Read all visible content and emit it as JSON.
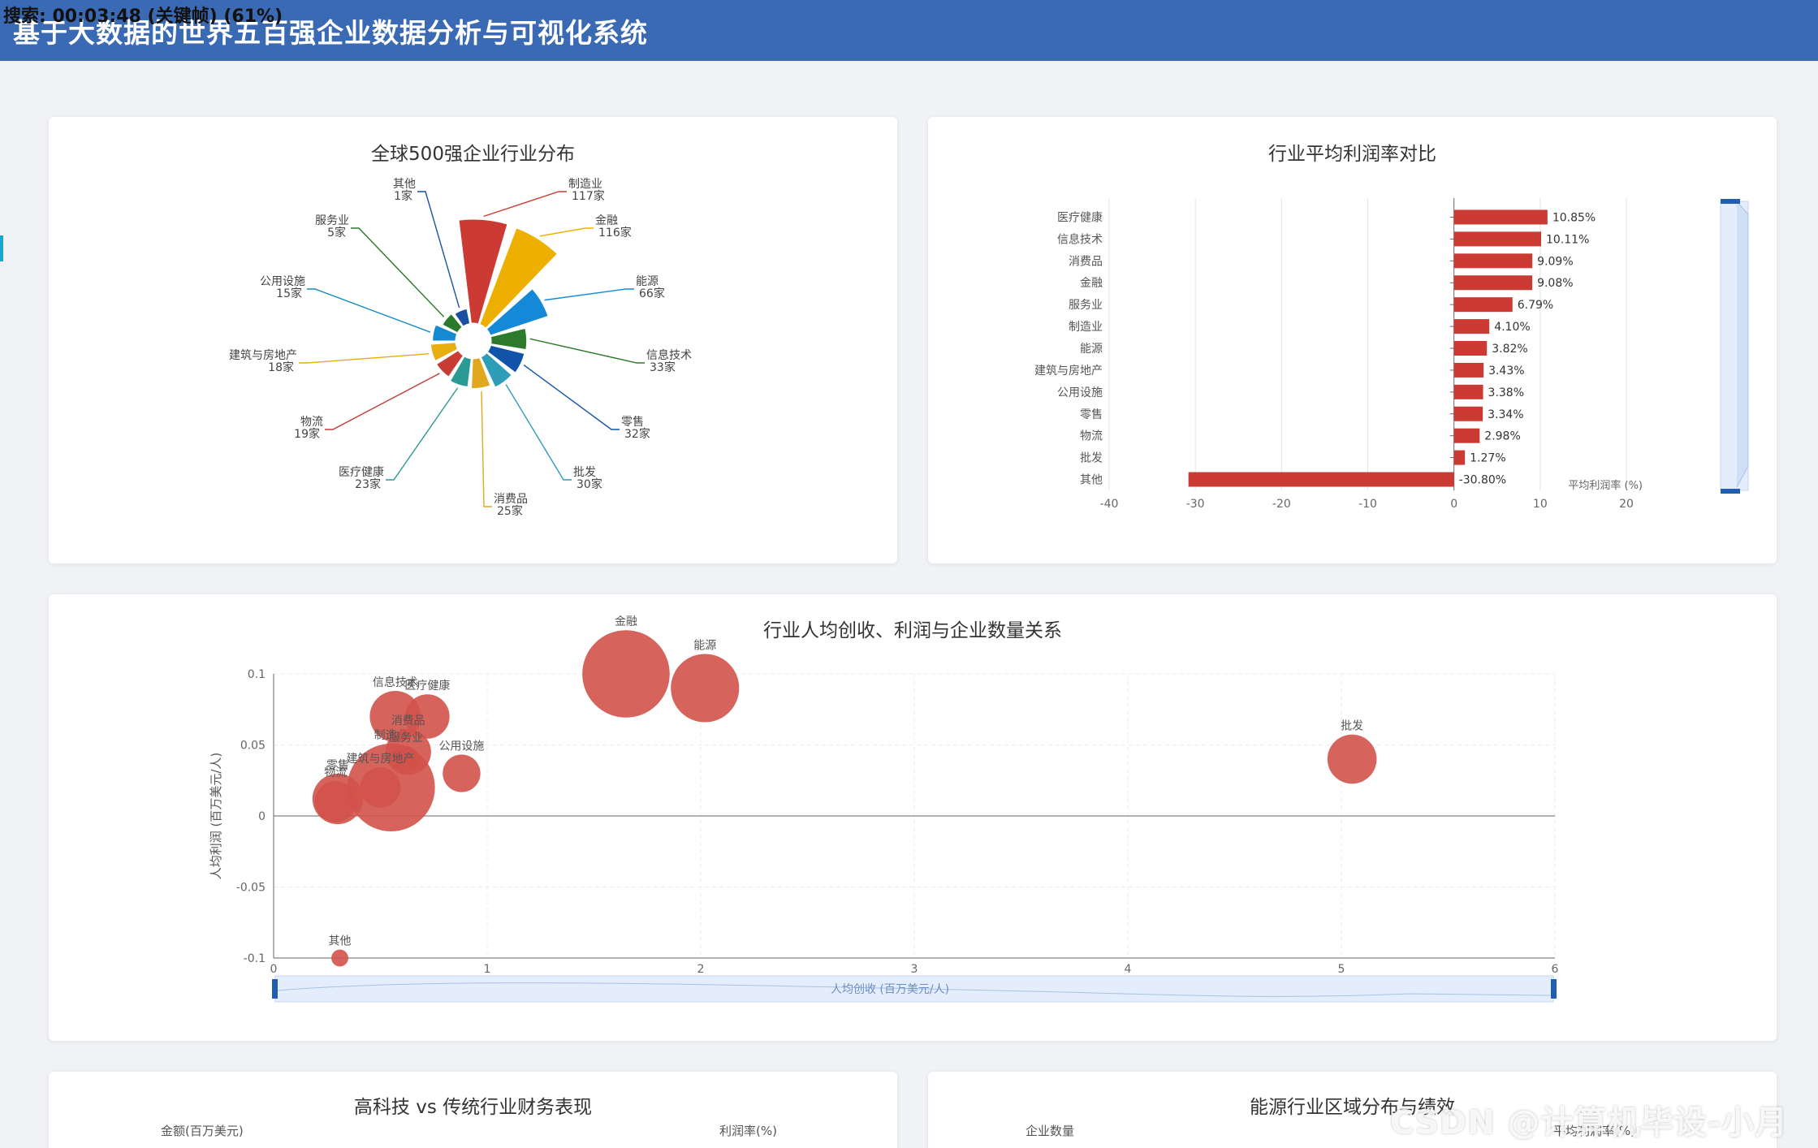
{
  "header": {
    "title": "基于大数据的世界五百强企业数据分析与可视化系统",
    "overlay_text": "搜索: 00:03:48 (关键帧) (61%)"
  },
  "watermark": "CSDN @计算机毕设-小月哥",
  "colors": {
    "header_bg": "#3a6ab4",
    "bar_red": "#cc3b33",
    "bubble_red": "#d2524a",
    "zoom_blue": "#1f5fae"
  },
  "cards": {
    "bottom_left_title": "高科技 vs 传统行业财务表现",
    "bottom_left_ylabel_left": "金额(百万美元)",
    "bottom_left_ylabel_right": "利润率(%)",
    "bottom_right_title": "能源行业区域分布与绩效",
    "bottom_right_ylabel_left": "企业数量",
    "bottom_right_ylabel_right": "平均利润率(%)"
  },
  "chart_data": [
    {
      "type": "pie",
      "variant": "rose",
      "title": "全球500强企业行业分布",
      "slices": [
        {
          "name": "制造业",
          "value": 117,
          "label": "117家",
          "color": "#cc3b33"
        },
        {
          "name": "金融",
          "value": 116,
          "label": "116家",
          "color": "#edb000"
        },
        {
          "name": "能源",
          "value": 66,
          "label": "66家",
          "color": "#1489d8"
        },
        {
          "name": "信息技术",
          "value": 33,
          "label": "33家",
          "color": "#2c7a2a"
        },
        {
          "name": "零售",
          "value": 32,
          "label": "32家",
          "color": "#1153a8"
        },
        {
          "name": "批发",
          "value": 30,
          "label": "30家",
          "color": "#2d9db8"
        },
        {
          "name": "消费品",
          "value": 25,
          "label": "25家",
          "color": "#e2a81d"
        },
        {
          "name": "医疗健康",
          "value": 23,
          "label": "23家",
          "color": "#2a9a94"
        },
        {
          "name": "物流",
          "value": 19,
          "label": "19家",
          "color": "#c73c35"
        },
        {
          "name": "建筑与房地产",
          "value": 18,
          "label": "18家",
          "color": "#e8ad0e"
        },
        {
          "name": "公用设施",
          "value": 15,
          "label": "15家",
          "color": "#168ad0"
        },
        {
          "name": "服务业",
          "value": 5,
          "label": "5家",
          "color": "#2a7a2a"
        },
        {
          "name": "其他",
          "value": 1,
          "label": "1家",
          "color": "#1c4fa0"
        }
      ]
    },
    {
      "type": "bar",
      "orientation": "horizontal",
      "title": "行业平均利润率对比",
      "categories": [
        "医疗健康",
        "信息技术",
        "消费品",
        "金融",
        "服务业",
        "制造业",
        "能源",
        "建筑与房地产",
        "公用设施",
        "零售",
        "物流",
        "批发",
        "其他"
      ],
      "series": [
        {
          "name": "平均利润率 (%)",
          "values": [
            10.85,
            10.11,
            9.09,
            9.08,
            6.79,
            4.1,
            3.82,
            3.43,
            3.38,
            3.34,
            2.98,
            1.27,
            -30.8
          ],
          "labels": [
            "10.85%",
            "10.11%",
            "9.09%",
            "9.08%",
            "6.79%",
            "4.10%",
            "3.82%",
            "3.43%",
            "3.38%",
            "3.34%",
            "2.98%",
            "1.27%",
            "-30.80%"
          ]
        }
      ],
      "xlim": [
        -40,
        20
      ],
      "xticks": [
        "-40",
        "-30",
        "-20",
        "-10",
        "0",
        "10",
        "20"
      ],
      "xlabel": "平均利润率 (%)",
      "grid": true
    },
    {
      "type": "scatter",
      "variant": "bubble",
      "title": "行业人均创收、利润与企业数量关系",
      "xlabel": "人均创收 (百万美元/人)",
      "ylabel": "人均利润 (百万美元/人)",
      "xlim": [
        0,
        6
      ],
      "ylim": [
        -0.1,
        0.1
      ],
      "xticks": [
        "0",
        "1",
        "2",
        "3",
        "4",
        "5",
        "6"
      ],
      "yticks": [
        "0.1",
        "0.05",
        "0",
        "-0.05",
        "-0.1"
      ],
      "points": [
        {
          "name": "金融",
          "x": 1.65,
          "y": 0.1,
          "count": 116
        },
        {
          "name": "能源",
          "x": 2.02,
          "y": 0.09,
          "count": 66
        },
        {
          "name": "批发",
          "x": 5.05,
          "y": 0.04,
          "count": 30
        },
        {
          "name": "信息技术",
          "x": 0.57,
          "y": 0.07,
          "count": 33
        },
        {
          "name": "医疗健康",
          "x": 0.72,
          "y": 0.07,
          "count": 23
        },
        {
          "name": "制造业",
          "x": 0.55,
          "y": 0.02,
          "count": 117
        },
        {
          "name": "消费品",
          "x": 0.63,
          "y": 0.045,
          "count": 25
        },
        {
          "name": "服务业",
          "x": 0.62,
          "y": 0.04,
          "count": 5
        },
        {
          "name": "公用设施",
          "x": 0.88,
          "y": 0.03,
          "count": 15
        },
        {
          "name": "建筑与房地产",
          "x": 0.5,
          "y": 0.02,
          "count": 18
        },
        {
          "name": "零售",
          "x": 0.3,
          "y": 0.012,
          "count": 32
        },
        {
          "name": "物流",
          "x": 0.29,
          "y": 0.01,
          "count": 19
        },
        {
          "name": "其他",
          "x": 0.31,
          "y": -0.1,
          "count": 1
        }
      ],
      "grid": true
    }
  ]
}
